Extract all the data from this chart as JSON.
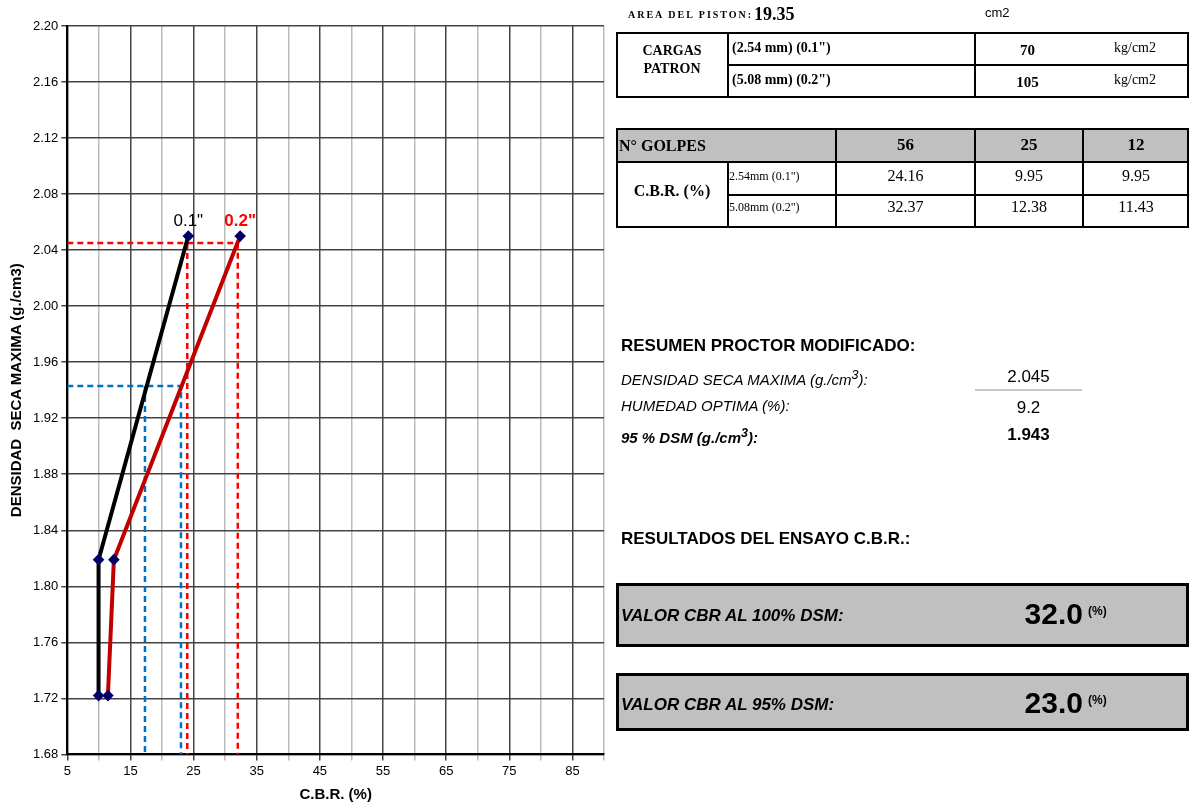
{
  "chart_data": [
    {
      "type": "line",
      "xlabel": "C.B.R. (%)",
      "ylabel": "DENSIDAD  SECA MAXIMA (g./cm3)",
      "xlim": [
        5,
        90
      ],
      "ylim": [
        1.68,
        2.2
      ],
      "xticks": [
        5,
        {
          "value": 10,
          "label": null
        },
        15,
        {
          "value": 20,
          "label": null
        },
        25,
        {
          "value": 30,
          "label": null
        },
        35,
        {
          "value": 40,
          "label": null
        },
        45,
        {
          "value": 50,
          "label": null
        },
        55,
        {
          "value": 60,
          "label": null
        },
        65,
        {
          "value": 70,
          "label": null
        },
        75,
        {
          "value": 80,
          "label": null
        },
        85,
        {
          "value": 90,
          "label": null
        }
      ],
      "yticks": [
        1.68,
        1.72,
        1.76,
        {
          "value": 1.8,
          "label": "1.80"
        },
        1.84,
        1.88,
        1.92,
        1.96,
        {
          "value": 2.0,
          "label": "2.00"
        },
        2.04,
        2.08,
        2.12,
        2.16,
        {
          "value": 2.2,
          "label": "2.20"
        }
      ],
      "grid": true,
      "legend": false,
      "marker": "diamond",
      "series": [
        {
          "color": "#000000",
          "x": [
            24.16,
            9.95,
            9.95
          ],
          "values": [
            2.05,
            1.819,
            1.722
          ]
        },
        {
          "color": "#c00000",
          "x": [
            32.37,
            12.38,
            11.43
          ],
          "values": [
            2.05,
            1.819,
            1.722
          ]
        },
        {
          "color": "#ff0000",
          "x": [
            5,
            32,
            32
          ],
          "values": [
            2.045,
            2.045,
            1.68
          ],
          "line_style": "dashed",
          "marker": "none"
        },
        {
          "color": "#ff0000",
          "x": [
            24,
            24
          ],
          "values": [
            2.045,
            1.68
          ],
          "line_style": "dashed",
          "marker": "none"
        },
        {
          "color": "#0070c0",
          "x": [
            5,
            23,
            23
          ],
          "values": [
            1.943,
            1.943,
            1.68
          ],
          "line_style": "dashed",
          "marker": "none"
        },
        {
          "color": "#0070c0",
          "x": [
            17.3,
            17.3
          ],
          "values": [
            1.943,
            1.68
          ],
          "line_style": "dashed",
          "marker": "none"
        }
      ],
      "annotations": [
        {
          "text": "0.1\"",
          "x": 24.16,
          "y": 2.05
        },
        {
          "text": "0.2\"",
          "x": 32.37,
          "y": 2.05
        }
      ]
    },
    {
      "type": "other",
      "annotations": [
        "AREA DEL PISTON:",
        "19.35",
        "cm2",
        "CARGAS PATRON",
        "(2.54 mm) (0.1\")",
        "70",
        "kg/cm2",
        "(5.08 mm) (0.2\")",
        "105",
        "kg/cm2",
        "N° GOLPES",
        "56",
        "25",
        "12",
        "C.B.R. (%)",
        "2.54mm (0.1\")",
        "24.16",
        "9.95",
        "9.95",
        "5.08mm (0.2\")",
        "32.37",
        "12.38",
        "11.43",
        "RESUMEN PROCTOR MODIFICADO:",
        "DENSIDAD SECA MAXIMA (g./cm$^{3}$):",
        "2.045",
        "HUMEDAD OPTIMA  (%):",
        "9.2",
        "95 % DSM  (g./cm$^{3}$):",
        "1.943",
        "RESULTADOS DEL ENSAYO C.B.R.:",
        "VALOR CBR  AL 100% DSM:",
        "32.0",
        "(%)",
        "VALOR CBR  AL 95% DSM:",
        "23.0",
        "(%)"
      ]
    }
  ]
}
